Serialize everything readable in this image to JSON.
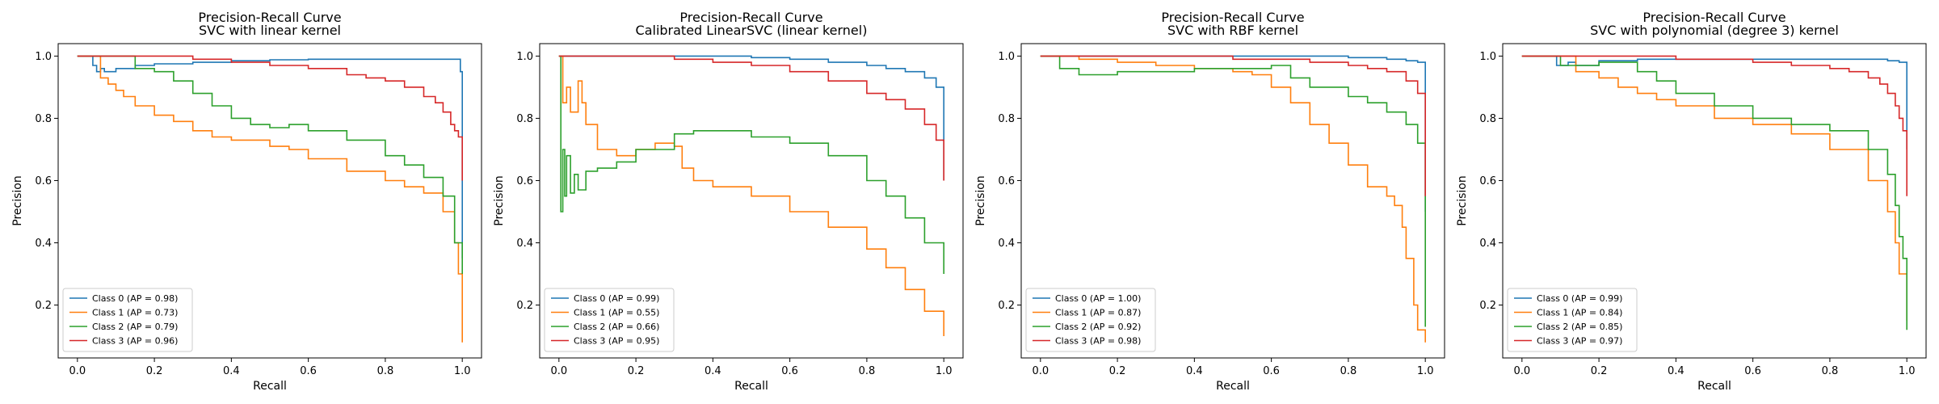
{
  "chart_data": [
    {
      "type": "line",
      "title": "Precision-Recall Curve",
      "subtitle": "SVC with linear kernel",
      "xlabel": "Recall",
      "ylabel": "Precision",
      "xlim": [
        -0.05,
        1.05
      ],
      "ylim": [
        0.03,
        1.04
      ],
      "xticks": [
        "0.0",
        "0.2",
        "0.4",
        "0.6",
        "0.8",
        "1.0"
      ],
      "yticks": [
        "0.2",
        "0.4",
        "0.6",
        "0.8",
        "1.0"
      ],
      "legend_position": "lower-left",
      "series": [
        {
          "name": "Class 0 (AP = 0.98)",
          "color": "#1f77b4",
          "x": [
            0,
            0.04,
            0.04,
            0.05,
            0.05,
            0.06,
            0.07,
            0.1,
            0.15,
            0.2,
            0.3,
            0.4,
            0.5,
            0.6,
            0.7,
            0.8,
            0.9,
            0.95,
            0.99,
            0.995,
            1.0,
            1.0
          ],
          "y": [
            1.0,
            1.0,
            0.97,
            0.97,
            0.95,
            0.96,
            0.95,
            0.96,
            0.97,
            0.975,
            0.98,
            0.985,
            0.988,
            0.99,
            0.99,
            0.99,
            0.99,
            0.99,
            0.99,
            0.95,
            0.7,
            0.35
          ]
        },
        {
          "name": "Class 1 (AP = 0.73)",
          "color": "#ff7f0e",
          "x": [
            0,
            0.05,
            0.06,
            0.08,
            0.1,
            0.12,
            0.15,
            0.2,
            0.25,
            0.3,
            0.35,
            0.4,
            0.5,
            0.55,
            0.6,
            0.7,
            0.8,
            0.85,
            0.9,
            0.95,
            0.98,
            0.99,
            1.0
          ],
          "y": [
            1.0,
            1.0,
            0.93,
            0.91,
            0.89,
            0.87,
            0.84,
            0.81,
            0.79,
            0.76,
            0.74,
            0.73,
            0.71,
            0.7,
            0.67,
            0.63,
            0.6,
            0.58,
            0.56,
            0.5,
            0.4,
            0.3,
            0.08
          ]
        },
        {
          "name": "Class 2 (AP = 0.79)",
          "color": "#2ca02c",
          "x": [
            0,
            0.14,
            0.15,
            0.2,
            0.25,
            0.3,
            0.35,
            0.4,
            0.45,
            0.5,
            0.55,
            0.6,
            0.7,
            0.8,
            0.85,
            0.9,
            0.95,
            0.98,
            1.0
          ],
          "y": [
            1.0,
            1.0,
            0.96,
            0.95,
            0.92,
            0.88,
            0.84,
            0.8,
            0.78,
            0.77,
            0.78,
            0.76,
            0.73,
            0.68,
            0.65,
            0.61,
            0.55,
            0.4,
            0.3
          ]
        },
        {
          "name": "Class 3 (AP = 0.96)",
          "color": "#d62728",
          "x": [
            0,
            0.2,
            0.3,
            0.4,
            0.5,
            0.6,
            0.7,
            0.75,
            0.8,
            0.85,
            0.9,
            0.93,
            0.95,
            0.97,
            0.98,
            0.99,
            1.0,
            1.0
          ],
          "y": [
            1.0,
            1.0,
            0.99,
            0.98,
            0.97,
            0.96,
            0.94,
            0.93,
            0.92,
            0.9,
            0.87,
            0.85,
            0.82,
            0.78,
            0.76,
            0.74,
            0.72,
            0.6
          ]
        }
      ]
    },
    {
      "type": "line",
      "title": "Precision-Recall Curve",
      "subtitle": "Calibrated LinearSVC (linear kernel)",
      "xlabel": "Recall",
      "ylabel": "Precision",
      "xlim": [
        -0.05,
        1.05
      ],
      "ylim": [
        0.03,
        1.04
      ],
      "xticks": [
        "0.0",
        "0.2",
        "0.4",
        "0.6",
        "0.8",
        "1.0"
      ],
      "yticks": [
        "0.2",
        "0.4",
        "0.6",
        "0.8",
        "1.0"
      ],
      "legend_position": "lower-left",
      "series": [
        {
          "name": "Class 0 (AP = 0.99)",
          "color": "#1f77b4",
          "x": [
            0,
            0.3,
            0.4,
            0.5,
            0.6,
            0.7,
            0.8,
            0.85,
            0.9,
            0.95,
            0.98,
            1.0,
            1.0
          ],
          "y": [
            1.0,
            1.0,
            1.0,
            0.995,
            0.99,
            0.98,
            0.97,
            0.96,
            0.95,
            0.93,
            0.9,
            0.85,
            0.6
          ]
        },
        {
          "name": "Class 1 (AP = 0.55)",
          "color": "#ff7f0e",
          "x": [
            0,
            0.01,
            0.02,
            0.03,
            0.05,
            0.06,
            0.07,
            0.1,
            0.15,
            0.2,
            0.25,
            0.3,
            0.32,
            0.35,
            0.4,
            0.5,
            0.6,
            0.7,
            0.8,
            0.85,
            0.9,
            0.95,
            1.0
          ],
          "y": [
            1.0,
            0.85,
            0.9,
            0.82,
            0.92,
            0.85,
            0.78,
            0.7,
            0.68,
            0.7,
            0.72,
            0.71,
            0.64,
            0.6,
            0.58,
            0.55,
            0.5,
            0.45,
            0.38,
            0.32,
            0.25,
            0.18,
            0.1
          ]
        },
        {
          "name": "Class 2 (AP = 0.66)",
          "color": "#2ca02c",
          "x": [
            0,
            0.005,
            0.01,
            0.015,
            0.02,
            0.03,
            0.04,
            0.05,
            0.07,
            0.1,
            0.15,
            0.2,
            0.3,
            0.35,
            0.4,
            0.5,
            0.6,
            0.7,
            0.8,
            0.85,
            0.9,
            0.95,
            1.0
          ],
          "y": [
            1.0,
            0.5,
            0.7,
            0.55,
            0.68,
            0.56,
            0.62,
            0.57,
            0.63,
            0.64,
            0.66,
            0.7,
            0.75,
            0.76,
            0.76,
            0.74,
            0.72,
            0.68,
            0.6,
            0.55,
            0.48,
            0.4,
            0.3
          ]
        },
        {
          "name": "Class 3 (AP = 0.95)",
          "color": "#d62728",
          "x": [
            0,
            0.2,
            0.3,
            0.4,
            0.5,
            0.6,
            0.7,
            0.8,
            0.85,
            0.9,
            0.95,
            0.98,
            1.0,
            1.0
          ],
          "y": [
            1.0,
            1.0,
            0.99,
            0.98,
            0.97,
            0.95,
            0.92,
            0.88,
            0.86,
            0.83,
            0.78,
            0.73,
            0.7,
            0.6
          ]
        }
      ]
    },
    {
      "type": "line",
      "title": "Precision-Recall Curve",
      "subtitle": "SVC with RBF kernel",
      "xlabel": "Recall",
      "ylabel": "Precision",
      "xlim": [
        -0.05,
        1.05
      ],
      "ylim": [
        0.03,
        1.04
      ],
      "xticks": [
        "0.0",
        "0.2",
        "0.4",
        "0.6",
        "0.8",
        "1.0"
      ],
      "yticks": [
        "0.2",
        "0.4",
        "0.6",
        "0.8",
        "1.0"
      ],
      "legend_position": "lower-left",
      "series": [
        {
          "name": "Class 0 (AP = 1.00)",
          "color": "#1f77b4",
          "x": [
            0,
            0.5,
            0.6,
            0.7,
            0.8,
            0.9,
            0.95,
            0.98,
            1.0,
            1.0
          ],
          "y": [
            1.0,
            1.0,
            1.0,
            1.0,
            0.995,
            0.99,
            0.985,
            0.98,
            0.97,
            0.5
          ]
        },
        {
          "name": "Class 1 (AP = 0.87)",
          "color": "#ff7f0e",
          "x": [
            0,
            0.1,
            0.2,
            0.3,
            0.4,
            0.5,
            0.55,
            0.6,
            0.65,
            0.7,
            0.75,
            0.8,
            0.85,
            0.9,
            0.92,
            0.94,
            0.95,
            0.97,
            0.98,
            1.0
          ],
          "y": [
            1.0,
            0.99,
            0.98,
            0.97,
            0.96,
            0.95,
            0.94,
            0.9,
            0.85,
            0.78,
            0.72,
            0.65,
            0.58,
            0.55,
            0.52,
            0.45,
            0.35,
            0.2,
            0.12,
            0.08
          ]
        },
        {
          "name": "Class 2 (AP = 0.92)",
          "color": "#2ca02c",
          "x": [
            0,
            0.05,
            0.1,
            0.2,
            0.3,
            0.4,
            0.5,
            0.6,
            0.65,
            0.7,
            0.8,
            0.85,
            0.9,
            0.95,
            0.98,
            1.0,
            1.0
          ],
          "y": [
            1.0,
            0.96,
            0.94,
            0.95,
            0.95,
            0.96,
            0.96,
            0.97,
            0.93,
            0.9,
            0.87,
            0.85,
            0.82,
            0.78,
            0.72,
            0.65,
            0.13
          ]
        },
        {
          "name": "Class 3 (AP = 0.98)",
          "color": "#d62728",
          "x": [
            0,
            0.3,
            0.5,
            0.6,
            0.7,
            0.8,
            0.85,
            0.9,
            0.95,
            0.98,
            1.0,
            1.0
          ],
          "y": [
            1.0,
            1.0,
            0.99,
            0.99,
            0.98,
            0.97,
            0.96,
            0.95,
            0.92,
            0.88,
            0.82,
            0.55
          ]
        }
      ]
    },
    {
      "type": "line",
      "title": "Precision-Recall Curve",
      "subtitle": "SVC with polynomial (degree 3) kernel",
      "xlabel": "Recall",
      "ylabel": "Precision",
      "xlim": [
        -0.05,
        1.05
      ],
      "ylim": [
        0.03,
        1.04
      ],
      "xticks": [
        "0.0",
        "0.2",
        "0.4",
        "0.6",
        "0.8",
        "1.0"
      ],
      "yticks": [
        "0.2",
        "0.4",
        "0.6",
        "0.8",
        "1.0"
      ],
      "legend_position": "lower-left",
      "series": [
        {
          "name": "Class 0 (AP = 0.99)",
          "color": "#1f77b4",
          "x": [
            0,
            0.08,
            0.09,
            0.12,
            0.14,
            0.2,
            0.3,
            0.4,
            0.5,
            0.6,
            0.7,
            0.8,
            0.9,
            0.95,
            0.98,
            1.0,
            1.0
          ],
          "y": [
            1.0,
            1.0,
            0.97,
            0.98,
            0.97,
            0.985,
            0.99,
            0.99,
            0.99,
            0.99,
            0.99,
            0.99,
            0.99,
            0.985,
            0.98,
            0.97,
            0.7
          ]
        },
        {
          "name": "Class 1 (AP = 0.84)",
          "color": "#ff7f0e",
          "x": [
            0,
            0.13,
            0.14,
            0.2,
            0.25,
            0.3,
            0.35,
            0.4,
            0.5,
            0.6,
            0.7,
            0.8,
            0.9,
            0.95,
            0.97,
            0.98,
            1.0
          ],
          "y": [
            1.0,
            1.0,
            0.95,
            0.93,
            0.9,
            0.88,
            0.86,
            0.84,
            0.8,
            0.78,
            0.75,
            0.7,
            0.6,
            0.5,
            0.4,
            0.3,
            0.15
          ]
        },
        {
          "name": "Class 2 (AP = 0.85)",
          "color": "#2ca02c",
          "x": [
            0,
            0.1,
            0.2,
            0.3,
            0.35,
            0.4,
            0.5,
            0.6,
            0.7,
            0.8,
            0.9,
            0.95,
            0.97,
            0.98,
            0.99,
            1.0
          ],
          "y": [
            1.0,
            0.97,
            0.98,
            0.95,
            0.92,
            0.88,
            0.84,
            0.8,
            0.78,
            0.76,
            0.7,
            0.62,
            0.52,
            0.42,
            0.35,
            0.12
          ]
        },
        {
          "name": "Class 3 (AP = 0.97)",
          "color": "#d62728",
          "x": [
            0,
            0.3,
            0.4,
            0.5,
            0.6,
            0.7,
            0.8,
            0.85,
            0.9,
            0.93,
            0.95,
            0.97,
            0.98,
            0.99,
            1.0,
            1.0
          ],
          "y": [
            1.0,
            1.0,
            0.99,
            0.99,
            0.98,
            0.97,
            0.96,
            0.95,
            0.93,
            0.91,
            0.88,
            0.84,
            0.8,
            0.76,
            0.7,
            0.55
          ]
        }
      ]
    }
  ]
}
